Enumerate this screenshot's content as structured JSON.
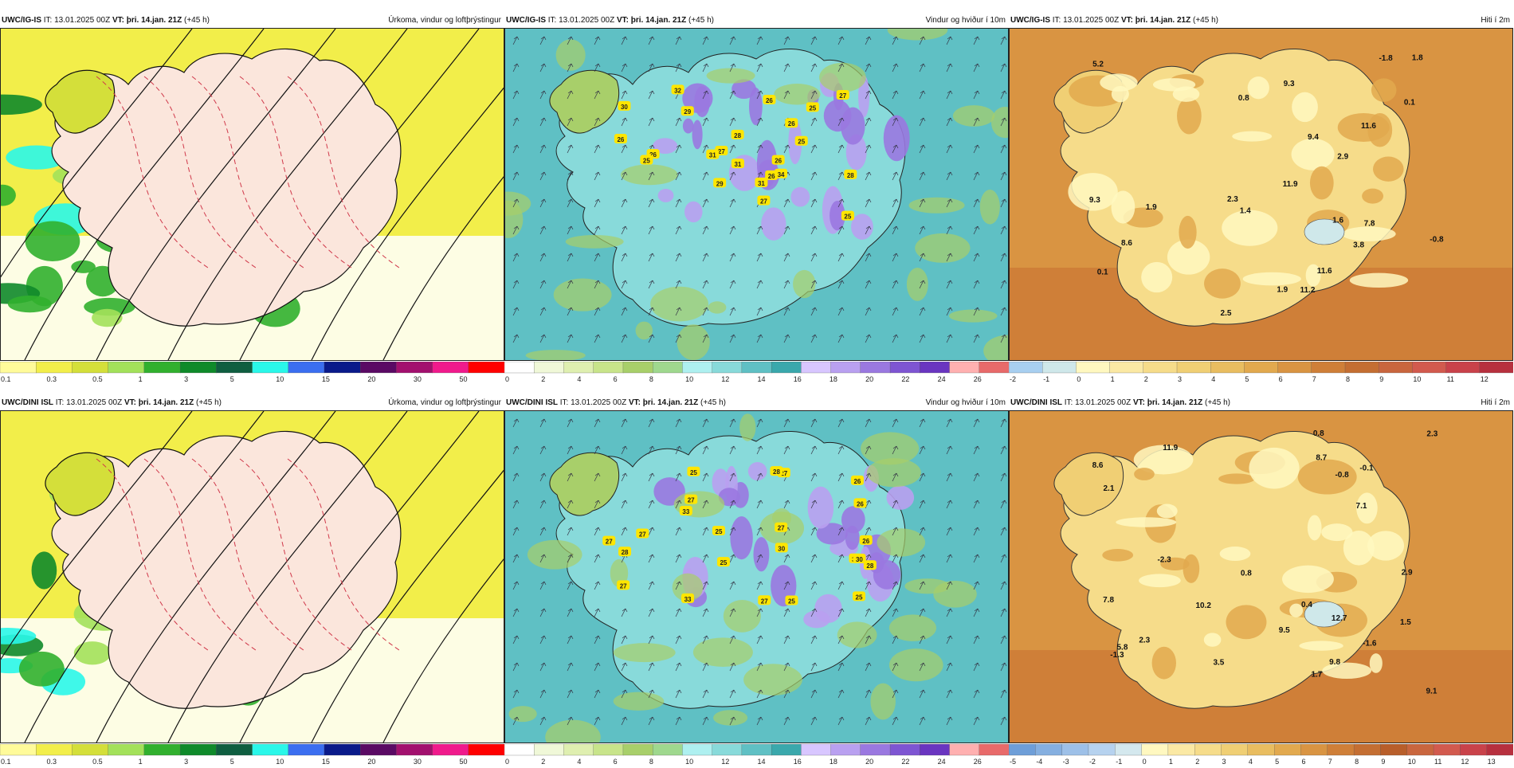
{
  "header": {
    "it_label": "IT:",
    "it_value": "13.01.2025 00Z",
    "vt_label": "VT:",
    "vt_value": "þri. 14.jan. 21Z",
    "lead": "(+45 h)"
  },
  "rows": [
    {
      "model": "UWC/IG-IS"
    },
    {
      "model": "UWC/DINI ISL"
    }
  ],
  "panels": {
    "precip": {
      "title": "Úrkoma, vindur og loftþrýstingur",
      "ticks": [
        "0.1",
        "0.3",
        "0.5",
        "1",
        "3",
        "5",
        "10",
        "15",
        "20",
        "30",
        "50"
      ],
      "colors": [
        "#fffb9a",
        "#f2ee4a",
        "#d4df3a",
        "#a3e15a",
        "#31b02e",
        "#0f8a2a",
        "#0f5e40",
        "#2af7e9",
        "#3b6ef0",
        "#0a1a8a",
        "#5a0a64",
        "#a2106e",
        "#f01a8c",
        "#ff0000"
      ]
    },
    "wind": {
      "title": "Vindur og hviður í 10m",
      "ticks": [
        "0",
        "2",
        "4",
        "6",
        "8",
        "10",
        "12",
        "14",
        "16",
        "18",
        "20",
        "22",
        "24",
        "26"
      ],
      "colors": [
        "#ffffff",
        "#f0f8d8",
        "#dfefb0",
        "#c8e48a",
        "#a8cf6a",
        "#9fd88e",
        "#aef0f0",
        "#88dada",
        "#5fc0c4",
        "#3aa8ac",
        "#d8c6ff",
        "#b9a0f0",
        "#9a78e0",
        "#7e55d2",
        "#6a35c0",
        "#ffb0b0",
        "#e86a6a"
      ]
    },
    "temp_top": {
      "title": "Hiti í 2m",
      "ticks": [
        "-2",
        "-1",
        "0",
        "1",
        "2",
        "3",
        "4",
        "5",
        "6",
        "7",
        "8",
        "9",
        "10",
        "11",
        "12"
      ],
      "colors": [
        "#a8cff0",
        "#cfe8ea",
        "#fff8c0",
        "#fbe9a4",
        "#f6dc8a",
        "#f0cf74",
        "#e9bd60",
        "#e2a94e",
        "#d99442",
        "#cf7f38",
        "#c46e32",
        "#c9663e",
        "#d25a4e",
        "#c9424a",
        "#b7303e"
      ]
    },
    "temp_bottom": {
      "title": "Hiti í 2m",
      "ticks": [
        "-5",
        "-4",
        "-3",
        "-2",
        "-1",
        "0",
        "1",
        "2",
        "3",
        "4",
        "5",
        "6",
        "7",
        "8",
        "9",
        "10",
        "11",
        "12",
        "13"
      ],
      "colors": [
        "#6e9ed8",
        "#85afe0",
        "#9dc0e8",
        "#b6d2ef",
        "#d4e8ee",
        "#fff8c0",
        "#fbe9a4",
        "#f6dc8a",
        "#f0cf74",
        "#e9bd60",
        "#e2a94e",
        "#d99442",
        "#cf7f38",
        "#c46e32",
        "#b85e2a",
        "#c9663e",
        "#d25a4e",
        "#c9424a",
        "#b7303e"
      ]
    }
  },
  "wind_labels": {
    "top": [
      "26",
      "25",
      "26",
      "25",
      "31",
      "32",
      "25",
      "34",
      "28",
      "27",
      "31",
      "29",
      "26",
      "26",
      "25",
      "28",
      "30",
      "27",
      "26",
      "29",
      "27",
      "31",
      "26"
    ],
    "bottom": [
      "25",
      "26",
      "30",
      "33",
      "27",
      "27",
      "27",
      "33",
      "27",
      "25",
      "28",
      "28",
      "27",
      "25",
      "25",
      "30",
      "26",
      "27",
      "28",
      "26",
      "27",
      "30",
      "25"
    ]
  },
  "temp_labels": {
    "top": [
      "2.3",
      "0.1",
      "0.8",
      "2.5",
      "9.3",
      "9.3",
      "1.6",
      "11.6",
      "11.9",
      "11.6",
      "9.4",
      "7.8",
      "11.2",
      "1.8",
      "1.9",
      "0.1",
      "-0.8",
      "1.9",
      "-1.8",
      "8.6",
      "5.2",
      "3.8",
      "2.9",
      "1.4"
    ],
    "bottom": [
      "2.9",
      "-2.3",
      "8.6",
      "0.4",
      "2.3",
      "9.8",
      "10.2",
      "9.5",
      "1.5",
      "3.5",
      "12.7",
      "2.3",
      "7.8",
      "9.1",
      "11.9",
      "7.1",
      "1.7",
      "2.1",
      "-0.1",
      "-1.3",
      "-1.6",
      "0.8",
      "8.7",
      "-0.8",
      "5.8",
      "0.8"
    ]
  }
}
